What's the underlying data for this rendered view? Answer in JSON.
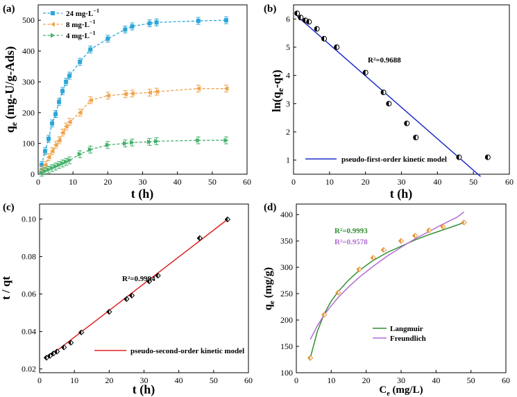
{
  "chart_data": [
    {
      "panel_label": "(a)",
      "type": "line",
      "xlabel": "t (h)",
      "ylabel_main": "q",
      "ylabel_sub": "e",
      "ylabel_rest": " (mg-U/g-Ads)",
      "xlim": [
        0,
        60
      ],
      "ylim": [
        0,
        550
      ],
      "xticks": [
        0,
        10,
        20,
        30,
        40,
        50,
        60
      ],
      "yticks": [
        0,
        100,
        200,
        300,
        400,
        500
      ],
      "legend_position": "top-left",
      "series": [
        {
          "name": "24 mg·L",
          "name_sup": "−1",
          "color": "#2ba6d8",
          "marker": "square",
          "x": [
            1,
            2,
            3,
            4,
            5,
            6,
            7,
            8,
            9,
            12,
            15,
            20,
            25,
            27,
            32,
            34,
            46,
            54
          ],
          "y": [
            30,
            75,
            115,
            165,
            195,
            235,
            270,
            300,
            320,
            365,
            405,
            440,
            470,
            480,
            490,
            493,
            498,
            500
          ]
        },
        {
          "name": "8 mg·L",
          "name_sup": "−1",
          "color": "#f0a24a",
          "marker": "triangle-left",
          "x": [
            1,
            2,
            3,
            4,
            5,
            6,
            7,
            8,
            9,
            12,
            15,
            20,
            25,
            27,
            32,
            34,
            46,
            54
          ],
          "y": [
            15,
            30,
            55,
            75,
            95,
            110,
            135,
            155,
            170,
            200,
            240,
            255,
            260,
            262,
            265,
            268,
            278,
            278
          ]
        },
        {
          "name": "4 mg·L",
          "name_sup": "−1",
          "color": "#43b06b",
          "marker": "triangle-right",
          "x": [
            1,
            2,
            3,
            4,
            5,
            6,
            7,
            8,
            9,
            12,
            15,
            20,
            25,
            27,
            32,
            34,
            46,
            54
          ],
          "y": [
            5,
            10,
            15,
            20,
            25,
            30,
            35,
            40,
            45,
            65,
            80,
            95,
            100,
            103,
            105,
            107,
            110,
            110
          ]
        }
      ]
    },
    {
      "panel_label": "(b)",
      "type": "scatter",
      "xlabel": "t (h)",
      "ylabel_main": "ln(q",
      "ylabel_sub": "e",
      "ylabel_rest": "-qt)",
      "xlim": [
        0,
        60
      ],
      "ylim": [
        0.5,
        6.5
      ],
      "xticks": [
        0,
        10,
        20,
        30,
        40,
        50,
        60
      ],
      "yticks": [
        1,
        2,
        3,
        4,
        5,
        6
      ],
      "annotation": "R²=0.9688",
      "legend_position": "bottom-left",
      "legend_label": "pseudo-first-order kinetic  model",
      "fit_color": "#1f2ec8",
      "fit_line": {
        "x": [
          1,
          52
        ],
        "y": [
          6.1,
          0.42
        ]
      },
      "points": {
        "x": [
          1,
          2,
          3.3,
          4.3,
          6.5,
          8.5,
          12,
          20,
          25,
          26.5,
          31.5,
          34,
          46,
          54
        ],
        "y": [
          6.2,
          6.05,
          5.95,
          5.9,
          5.65,
          5.3,
          5.0,
          4.1,
          3.4,
          3.0,
          2.3,
          1.8,
          1.1,
          1.1
        ]
      }
    },
    {
      "panel_label": "(c)",
      "type": "scatter",
      "xlabel": "t (h)",
      "ylabel_main": "t / qt",
      "xlim": [
        0,
        60
      ],
      "ylim": [
        0.018,
        0.108
      ],
      "xticks": [
        0,
        10,
        20,
        30,
        40,
        50,
        60
      ],
      "yticks": [
        0.02,
        0.04,
        0.06,
        0.08,
        0.1
      ],
      "ytick_labels": [
        "0.02",
        "0.04",
        "0.06",
        "0.08",
        "0.10"
      ],
      "annotation": "R²=0.9994",
      "legend_position": "bottom-right",
      "legend_label": "pseudo-second-order kinetic  model",
      "fit_color": "#dd2222",
      "fit_line": {
        "x": [
          2,
          54
        ],
        "y": [
          0.0255,
          0.0998
        ]
      },
      "points": {
        "x": [
          2,
          3,
          4,
          5,
          7,
          9,
          12,
          20,
          25,
          26.5,
          31.5,
          34,
          46,
          54
        ],
        "y": [
          0.026,
          0.027,
          0.0283,
          0.0293,
          0.0315,
          0.034,
          0.0395,
          0.0505,
          0.0573,
          0.0592,
          0.0668,
          0.0698,
          0.0898,
          0.0998
        ]
      }
    },
    {
      "panel_label": "(d)",
      "type": "scatter",
      "xlabel_main": "C",
      "xlabel_sub": "e",
      "xlabel_rest": " (mg/L)",
      "ylabel_main": "q",
      "ylabel_sub": "e",
      "ylabel_rest": " (mg/g)",
      "xlim": [
        0,
        60
      ],
      "ylim": [
        100,
        420
      ],
      "xticks": [
        0,
        10,
        20,
        30,
        40,
        50,
        60
      ],
      "yticks": [
        100,
        150,
        200,
        250,
        300,
        350,
        400
      ],
      "annotations": [
        {
          "text": "R²=0.9993",
          "color": "#2f8f2f"
        },
        {
          "text": "R²=0.9578",
          "color": "#b36bd6"
        }
      ],
      "legend_position": "bottom-center",
      "points": {
        "x": [
          4,
          8,
          12,
          18,
          22,
          25,
          30,
          34,
          38,
          42,
          48
        ],
        "y": [
          128,
          210,
          252,
          296,
          318,
          333,
          350,
          360,
          370,
          377,
          385
        ],
        "color": "#e3963a"
      },
      "fits": [
        {
          "name": "Langmuir",
          "color": "#2f8f2f",
          "x": [
            4,
            6,
            8,
            10,
            12,
            15,
            18,
            22,
            26,
            30,
            34,
            38,
            42,
            46,
            48
          ],
          "y": [
            128,
            178,
            212,
            236,
            254,
            276,
            294,
            313,
            328,
            340,
            352,
            362,
            371,
            380,
            385
          ]
        },
        {
          "name": "Freundlich",
          "color": "#b36bd6",
          "x": [
            4,
            6,
            8,
            10,
            12,
            15,
            18,
            22,
            26,
            30,
            34,
            38,
            42,
            46,
            48
          ],
          "y": [
            163,
            189,
            210,
            227,
            243,
            263,
            281,
            302,
            321,
            338,
            354,
            368,
            382,
            395,
            405
          ]
        }
      ]
    }
  ]
}
